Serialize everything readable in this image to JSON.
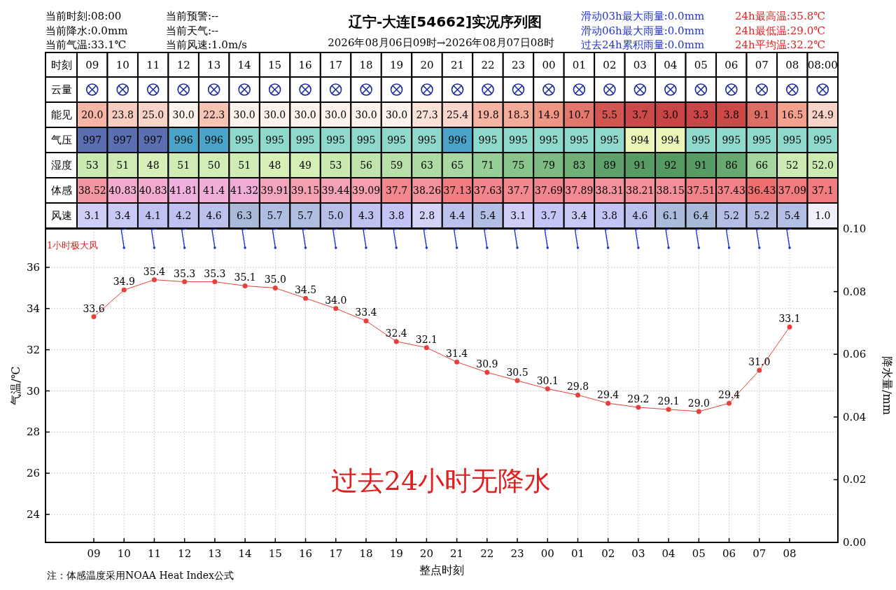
{
  "chart_data": [
    {
      "type": "other",
      "title": "辽宁-大连[54662]实况序列图",
      "subtitle": "2026年08月06日09时→2026年08月07日08时",
      "annotations": [
        "当前时刻:08:00",
        "当前降水:0.0mm",
        "当前气温:33.1℃",
        "当前预警:--",
        "当前天气:--",
        "当前风速:1.0m/s",
        "滑动03h最大雨量:0.0mm",
        "滑动06h最大雨量:0.0mm",
        "过去24h累积雨量:0.0mm",
        "24h最高温:35.8℃",
        "24h最低温:29.0℃",
        "24h平均温:32.2℃"
      ]
    },
    {
      "type": "heatmap",
      "xlabel": "时刻",
      "categories": [
        "09",
        "10",
        "11",
        "12",
        "13",
        "14",
        "15",
        "16",
        "17",
        "18",
        "19",
        "20",
        "21",
        "22",
        "23",
        "00",
        "01",
        "02",
        "03",
        "04",
        "05",
        "06",
        "07",
        "08",
        "08:00"
      ],
      "y_categories": [
        "云量",
        "能见",
        "气压",
        "湿度",
        "体感",
        "风速"
      ],
      "cells": [
        [
          null,
          null,
          null,
          null,
          null,
          null,
          null,
          null,
          null,
          null,
          null,
          null,
          null,
          null,
          null,
          null,
          null,
          null,
          null,
          null,
          null,
          null,
          null,
          null,
          null
        ],
        [
          20.0,
          23.8,
          25.0,
          30.0,
          22.3,
          30.0,
          30.0,
          30.0,
          30.0,
          30.0,
          30.0,
          27.3,
          25.4,
          19.8,
          18.3,
          14.9,
          10.7,
          5.5,
          3.7,
          3.0,
          3.3,
          3.8,
          9.1,
          16.5,
          24.9
        ],
        [
          997,
          997,
          997,
          996,
          996,
          995,
          995,
          995,
          995,
          995,
          995,
          995,
          996,
          995,
          995,
          995,
          995,
          995,
          994,
          994,
          995,
          995,
          995,
          995,
          995
        ],
        [
          53,
          51,
          48,
          51,
          50,
          51,
          48,
          49,
          53,
          56,
          59,
          63,
          65,
          71,
          75,
          79,
          83,
          89,
          91,
          92,
          91,
          86,
          66,
          52,
          52.0
        ],
        [
          38.52,
          40.83,
          40.83,
          41.81,
          41.4,
          41.32,
          39.91,
          39.15,
          39.44,
          39.09,
          37.7,
          38.26,
          37.13,
          37.63,
          37.7,
          37.69,
          37.89,
          38.31,
          38.21,
          38.15,
          37.51,
          37.43,
          36.43,
          37.09,
          37.1
        ],
        [
          3.1,
          3.4,
          4.1,
          4.2,
          4.6,
          6.3,
          5.7,
          5.7,
          5.0,
          4.3,
          3.8,
          2.8,
          4.4,
          5.4,
          3.1,
          3.7,
          3.4,
          3.8,
          4.6,
          6.1,
          6.4,
          5.2,
          5.2,
          5.4,
          1.0
        ]
      ],
      "cell_labels": [
        [
          null,
          null,
          null,
          null,
          null,
          null,
          null,
          null,
          null,
          null,
          null,
          null,
          null,
          null,
          null,
          null,
          null,
          null,
          null,
          null,
          null,
          null,
          null,
          null,
          null
        ],
        [
          "20.0",
          "23.8",
          "25.0",
          "30.0",
          "22.3",
          "30.0",
          "30.0",
          "30.0",
          "30.0",
          "30.0",
          "30.0",
          "27.3",
          "25.4",
          "19.8",
          "18.3",
          "14.9",
          "10.7",
          "5.5",
          "3.7",
          "3.0",
          "3.3",
          "3.8",
          "9.1",
          "16.5",
          "24.9"
        ],
        [
          "997",
          "997",
          "997",
          "996",
          "996",
          "995",
          "995",
          "995",
          "995",
          "995",
          "995",
          "995",
          "996",
          "995",
          "995",
          "995",
          "995",
          "995",
          "994",
          "994",
          "995",
          "995",
          "995",
          "995",
          "995"
        ],
        [
          "53",
          "51",
          "48",
          "51",
          "50",
          "51",
          "48",
          "49",
          "53",
          "56",
          "59",
          "63",
          "65",
          "71",
          "75",
          "79",
          "83",
          "89",
          "91",
          "92",
          "91",
          "86",
          "66",
          "52",
          "52.0"
        ],
        [
          "38.52",
          "40.83",
          "40.83",
          "41.81",
          "41.4",
          "41.32",
          "39.91",
          "39.15",
          "39.44",
          "39.09",
          "37.7",
          "38.26",
          "37.13",
          "37.63",
          "37.7",
          "37.69",
          "37.89",
          "38.31",
          "38.21",
          "38.15",
          "37.51",
          "37.43",
          "36.43",
          "37.09",
          "37.1"
        ],
        [
          "3.1",
          "3.4",
          "4.1",
          "4.2",
          "4.6",
          "6.3",
          "5.7",
          "5.7",
          "5.0",
          "4.3",
          "3.8",
          "2.8",
          "4.4",
          "5.4",
          "3.1",
          "3.7",
          "3.4",
          "3.8",
          "4.6",
          "6.1",
          "6.4",
          "5.2",
          "5.2",
          "5.4",
          "1.0"
        ]
      ]
    },
    {
      "type": "line",
      "categories": [
        "09",
        "10",
        "11",
        "12",
        "13",
        "14",
        "15",
        "16",
        "17",
        "18",
        "19",
        "20",
        "21",
        "22",
        "23",
        "00",
        "01",
        "02",
        "03",
        "04",
        "05",
        "06",
        "07",
        "08"
      ],
      "values": [
        33.6,
        34.9,
        35.4,
        35.3,
        35.3,
        35.1,
        35.0,
        34.5,
        34.0,
        33.4,
        32.4,
        32.1,
        31.4,
        30.9,
        30.5,
        30.1,
        29.8,
        29.4,
        29.2,
        29.1,
        29.0,
        29.4,
        31.0,
        33.1
      ],
      "value_labels": [
        "33.6",
        "34.9",
        "35.4",
        "35.3",
        "35.3",
        "35.1",
        "35.0",
        "34.5",
        "34.0",
        "33.4",
        "32.4",
        "32.1",
        "31.4",
        "30.9",
        "30.5",
        "30.1",
        "29.8",
        "29.4",
        "29.2",
        "29.1",
        "29.0",
        "29.4",
        "31.0",
        "33.1"
      ],
      "color": "#e8413c",
      "marker": "circle",
      "grid": true,
      "ylim": [
        22.64,
        37.87
      ],
      "yticks": [
        24,
        26,
        28,
        30,
        32,
        34,
        36
      ],
      "y2lim": [
        0,
        0.1
      ],
      "y2ticks": [
        {
          "value": 0,
          "label": "0.00"
        },
        {
          "value": 0.02,
          "label": "0.02"
        },
        {
          "value": 0.04,
          "label": "0.04"
        },
        {
          "value": 0.06,
          "label": "0.06"
        },
        {
          "value": 0.08,
          "label": "0.08"
        },
        {
          "value": 0.1,
          "label": "0.10"
        }
      ],
      "xlabel": "整点时刻",
      "ylabel": "气温/℃",
      "y2label": "降水量/mm",
      "annotations": [
        "1小时极大风",
        "过去24小时无降水",
        "注：体感温度采用NOAA Heat Index公式"
      ]
    }
  ]
}
